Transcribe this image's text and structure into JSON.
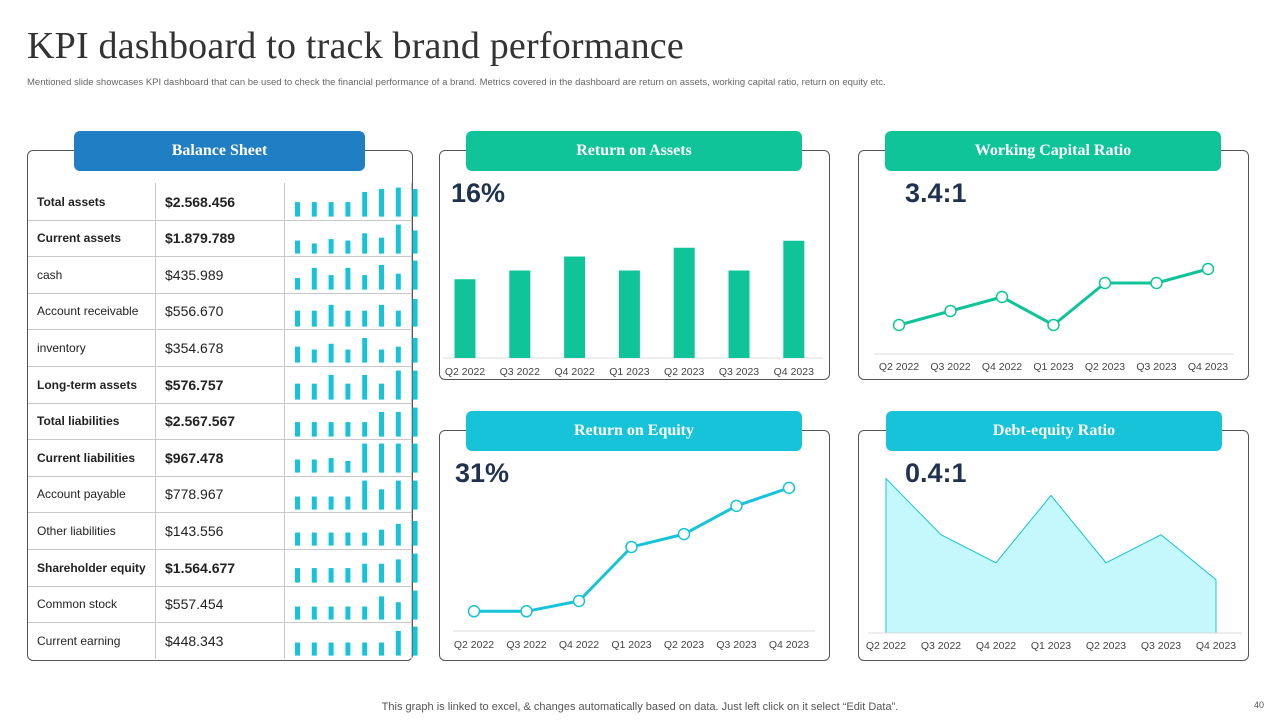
{
  "header": {
    "title": "KPI dashboard to track brand performance",
    "subtitle": "Mentioned slide showcases KPI dashboard that can be used to check the financial performance of a brand. Metrics covered in the dashboard are return on assets, working capital ratio, return on equity etc."
  },
  "colors": {
    "blue": "#1f7ec4",
    "green": "#10c49a",
    "cyan": "#17c3d8",
    "navy": "#1f3350",
    "area": "#c5f8fc"
  },
  "balance_sheet": {
    "title": "Balance Sheet",
    "rows": [
      {
        "label": "Total assets",
        "value": "$2.568.456",
        "bold": true,
        "spark": [
          0.5,
          0.5,
          0.5,
          0.5,
          0.85,
          0.95,
          1.0,
          0.95
        ]
      },
      {
        "label": "Current assets",
        "value": "$1.879.789",
        "bold": true,
        "spark": [
          0.45,
          0.35,
          0.5,
          0.45,
          0.7,
          0.55,
          1.0,
          0.8
        ]
      },
      {
        "label": "cash",
        "value": "$435.989",
        "bold": false,
        "spark": [
          0.4,
          0.75,
          0.5,
          0.75,
          0.5,
          0.85,
          0.55,
          1.0
        ]
      },
      {
        "label": "Account receivable",
        "value": "$556.670",
        "bold": false,
        "spark": [
          0.55,
          0.55,
          0.75,
          0.55,
          0.55,
          0.75,
          0.55,
          0.95
        ]
      },
      {
        "label": "inventory",
        "value": "$354.678",
        "bold": false,
        "spark": [
          0.55,
          0.45,
          0.65,
          0.45,
          0.85,
          0.45,
          0.55,
          0.85
        ]
      },
      {
        "label": "Long-term assets",
        "value": "$576.757",
        "bold": true,
        "spark": [
          0.55,
          0.55,
          0.85,
          0.55,
          0.85,
          0.55,
          1.0,
          1.0
        ]
      },
      {
        "label": "Total liabilities",
        "value": "$2.567.567",
        "bold": true,
        "spark": [
          0.5,
          0.5,
          0.5,
          0.5,
          0.5,
          0.85,
          0.85,
          1.0
        ]
      },
      {
        "label": "Current liabilities",
        "value": "$967.478",
        "bold": true,
        "spark": [
          0.45,
          0.45,
          0.5,
          0.4,
          1.0,
          1.0,
          1.0,
          1.0
        ]
      },
      {
        "label": "Account payable",
        "value": "$778.967",
        "bold": false,
        "spark": [
          0.45,
          0.45,
          0.45,
          0.45,
          1.0,
          0.7,
          1.0,
          1.0
        ]
      },
      {
        "label": "Other liabilities",
        "value": "$143.556",
        "bold": false,
        "spark": [
          0.45,
          0.45,
          0.45,
          0.45,
          0.45,
          0.55,
          0.75,
          0.85
        ]
      },
      {
        "label": "Shareholder equity",
        "value": "$1.564.677",
        "bold": true,
        "spark": [
          0.5,
          0.5,
          0.5,
          0.5,
          0.65,
          0.65,
          0.8,
          1.0
        ]
      },
      {
        "label": "Common stock",
        "value": "$557.454",
        "bold": false,
        "spark": [
          0.45,
          0.45,
          0.45,
          0.45,
          0.45,
          0.8,
          0.6,
          1.0
        ]
      },
      {
        "label": "Current earning",
        "value": "$448.343",
        "bold": false,
        "spark": [
          0.45,
          0.45,
          0.45,
          0.45,
          0.45,
          0.45,
          0.85,
          1.0
        ]
      }
    ]
  },
  "chart_data": [
    {
      "type": "bar",
      "title": "Return on Assets",
      "headline": "16%",
      "categories": [
        "Q2 2022",
        "Q3 2022",
        "Q4 2022",
        "Q1 2023",
        "Q2 2023",
        "Q3 2023",
        "Q4 2023"
      ],
      "values": [
        4.5,
        5,
        5.8,
        5,
        6.3,
        5,
        6.7
      ],
      "ylim": [
        0,
        8
      ]
    },
    {
      "type": "line",
      "title": "Working Capital Ratio",
      "headline": "3.4:1",
      "categories": [
        "Q2 2022",
        "Q3 2022",
        "Q4 2022",
        "Q1 2023",
        "Q2 2023",
        "Q3 2023",
        "Q4 2023"
      ],
      "values": [
        1,
        1.5,
        2,
        1,
        2.5,
        2.5,
        3
      ],
      "ylim": [
        0,
        4
      ]
    },
    {
      "type": "line",
      "title": "Return on Equity",
      "headline": "31%",
      "categories": [
        "Q2 2022",
        "Q3 2022",
        "Q4 2022",
        "Q1 2023",
        "Q2 2023",
        "Q3 2023",
        "Q4 2023"
      ],
      "values": [
        1,
        1,
        1.4,
        3.5,
        4,
        5.1,
        5.8
      ],
      "ylim": [
        0,
        7
      ]
    },
    {
      "type": "area",
      "title": "Debt-equity Ratio",
      "headline": "0.4:1",
      "categories": [
        "Q2 2022",
        "Q3 2022",
        "Q4 2022",
        "Q1 2023",
        "Q2 2023",
        "Q3 2023",
        "Q4 2023"
      ],
      "values": [
        5.5,
        3.5,
        2.5,
        4.9,
        2.5,
        3.5,
        1.9
      ],
      "ylim": [
        0,
        5.7
      ]
    }
  ],
  "footer": {
    "note": "This graph is linked to excel, & changes automatically based on data. Just left click on it select “Edit Data”.",
    "page": "40"
  }
}
